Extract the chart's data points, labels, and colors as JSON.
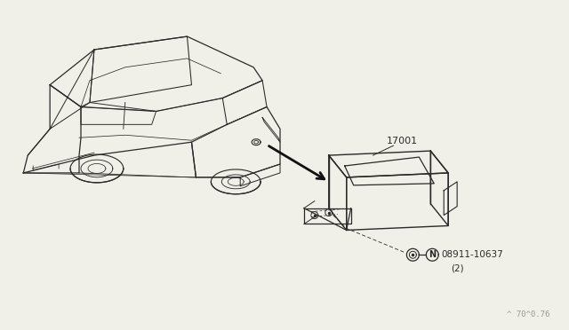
{
  "bg_color": "#f0efe8",
  "line_color": "#2a2a2a",
  "text_color": "#2a2a2a",
  "label_color": "#555555",
  "part_label_17001": "17001",
  "part_label_bolt": "08911-10637",
  "bolt_qty": "(2)",
  "bolt_symbol": "N",
  "diagram_code": "^ 70^0.76",
  "figsize": [
    6.4,
    3.72
  ],
  "dpi": 100
}
